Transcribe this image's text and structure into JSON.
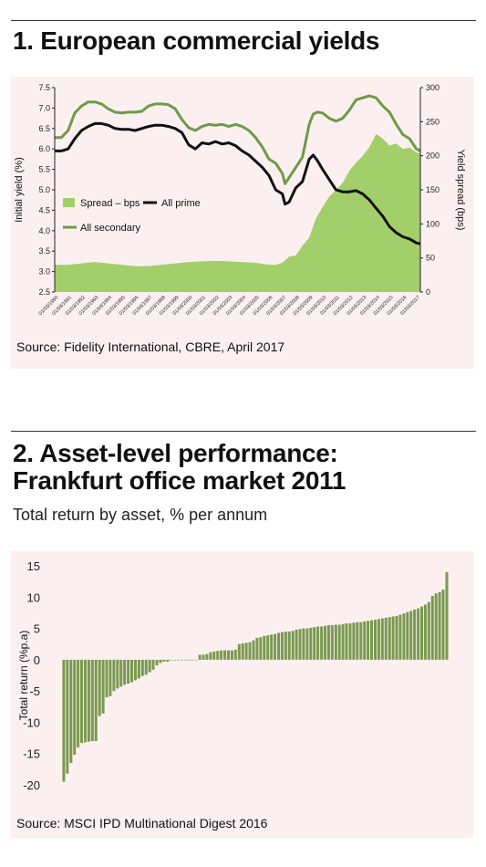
{
  "section1": {
    "title": "1. European commercial yields",
    "source": "Source: Fidelity International, CBRE, April 2017"
  },
  "section2": {
    "title_line1": "2. Asset-level performance:",
    "title_line2": "Frankfurt office market 2011",
    "subtitle": "Total return by asset, % per annum",
    "source": "Source: MSCI IPD Multinational Digest 2016"
  },
  "chart_data": [
    {
      "type": "line",
      "ylabel": "Initial yield (%)",
      "y2label": "Yield spread (bps)",
      "ylim": [
        2.5,
        7.5
      ],
      "yticks": [
        "2.5",
        "3.0",
        "3.5",
        "4.0",
        "4.5",
        "5.0",
        "5.5",
        "6.0",
        "6.5",
        "7.0",
        "7.5"
      ],
      "y2lim": [
        0,
        300
      ],
      "y2ticks": [
        "0",
        "50",
        "100",
        "150",
        "200",
        "250",
        "300"
      ],
      "xticks": [
        "01/03/1990",
        "01/03/1991",
        "01/03/1992",
        "01/03/1993",
        "01/03/1994",
        "01/03/1995",
        "01/03/1996",
        "01/03/1997",
        "01/03/1998",
        "01/03/1999",
        "01/03/2000",
        "01/03/2001",
        "01/03/2002",
        "01/03/2003",
        "01/03/2004",
        "01/03/2005",
        "01/03/2006",
        "01/03/2007",
        "01/03/2008",
        "01/03/2009",
        "01/03/2010",
        "01/03/2011",
        "01/03/2012",
        "01/03/2013",
        "01/03/2014",
        "01/03/2015",
        "01/03/2016",
        "01/03/2017"
      ],
      "legend": [
        "Spread – bps",
        "All prime",
        "All secondary"
      ],
      "colors": {
        "spread": "#a3cf6a",
        "prime": "#111111",
        "secondary": "#6e9a4a"
      },
      "series": [
        {
          "name": "All secondary",
          "axis": "left",
          "x": [
            1990.0,
            1990.5,
            1991.0,
            1991.5,
            1992.0,
            1992.5,
            1993.0,
            1993.5,
            1994.0,
            1994.5,
            1995.0,
            1995.5,
            1996.0,
            1996.5,
            1997.0,
            1997.5,
            1998.0,
            1998.5,
            1999.0,
            1999.5,
            2000.0,
            2000.5,
            2001.0,
            2001.5,
            2002.0,
            2002.5,
            2003.0,
            2003.5,
            2004.0,
            2004.5,
            2005.0,
            2005.5,
            2006.0,
            2006.5,
            2007.0,
            2007.2,
            2007.5,
            2008.0,
            2008.5,
            2009.0,
            2009.3,
            2009.6,
            2010.0,
            2010.5,
            2011.0,
            2011.5,
            2012.0,
            2012.5,
            2013.0,
            2013.5,
            2014.0,
            2014.5,
            2015.0,
            2015.5,
            2016.0,
            2016.5,
            2017.0,
            2017.3
          ],
          "values": [
            6.28,
            6.28,
            6.45,
            6.88,
            7.05,
            7.15,
            7.15,
            7.1,
            6.98,
            6.9,
            6.88,
            6.9,
            6.9,
            6.92,
            7.05,
            7.1,
            7.1,
            7.08,
            6.98,
            6.72,
            6.52,
            6.45,
            6.55,
            6.6,
            6.58,
            6.6,
            6.55,
            6.6,
            6.55,
            6.45,
            6.28,
            6.05,
            5.75,
            5.65,
            5.4,
            5.15,
            5.3,
            5.55,
            5.8,
            6.6,
            6.85,
            6.9,
            6.88,
            6.75,
            6.68,
            6.75,
            6.95,
            7.2,
            7.25,
            7.3,
            7.25,
            7.05,
            6.9,
            6.6,
            6.35,
            6.25,
            6.0,
            5.95
          ]
        },
        {
          "name": "All prime",
          "axis": "left",
          "x": [
            1990.0,
            1990.5,
            1991.0,
            1991.5,
            1992.0,
            1992.5,
            1993.0,
            1993.5,
            1994.0,
            1994.5,
            1995.0,
            1995.5,
            1996.0,
            1996.5,
            1997.0,
            1997.5,
            1998.0,
            1998.5,
            1999.0,
            1999.5,
            2000.0,
            2000.5,
            2001.0,
            2001.5,
            2002.0,
            2002.5,
            2003.0,
            2003.5,
            2004.0,
            2004.5,
            2005.0,
            2005.5,
            2006.0,
            2006.5,
            2007.0,
            2007.2,
            2007.5,
            2008.0,
            2008.5,
            2009.0,
            2009.3,
            2009.6,
            2010.0,
            2010.5,
            2011.0,
            2011.5,
            2012.0,
            2012.5,
            2013.0,
            2013.5,
            2014.0,
            2014.5,
            2015.0,
            2015.5,
            2016.0,
            2016.5,
            2017.0,
            2017.3
          ],
          "values": [
            5.95,
            5.95,
            6.0,
            6.25,
            6.45,
            6.55,
            6.62,
            6.62,
            6.58,
            6.5,
            6.48,
            6.48,
            6.45,
            6.5,
            6.55,
            6.58,
            6.58,
            6.55,
            6.5,
            6.4,
            6.1,
            6.0,
            6.15,
            6.12,
            6.18,
            6.12,
            6.15,
            6.08,
            5.95,
            5.85,
            5.7,
            5.55,
            5.35,
            5.0,
            4.9,
            4.65,
            4.7,
            5.05,
            5.2,
            5.75,
            5.85,
            5.72,
            5.5,
            5.25,
            5.0,
            4.95,
            4.95,
            4.98,
            4.9,
            4.75,
            4.55,
            4.35,
            4.1,
            3.95,
            3.85,
            3.8,
            3.7,
            3.68
          ]
        },
        {
          "name": "Spread – bps",
          "axis": "right",
          "x": [
            1990.0,
            1991.0,
            1992.0,
            1993.0,
            1994.0,
            1995.0,
            1996.0,
            1997.0,
            1998.0,
            1999.0,
            2000.0,
            2001.0,
            2002.0,
            2003.0,
            2004.0,
            2005.0,
            2006.0,
            2006.5,
            2007.0,
            2007.5,
            2008.0,
            2008.5,
            2009.0,
            2009.5,
            2010.0,
            2010.5,
            2011.0,
            2011.5,
            2012.0,
            2012.5,
            2013.0,
            2013.5,
            2014.0,
            2014.5,
            2015.0,
            2015.5,
            2016.0,
            2016.5,
            2017.0,
            2017.3
          ],
          "values": [
            40,
            40,
            42,
            44,
            42,
            40,
            38,
            38,
            40,
            42,
            44,
            45,
            46,
            45,
            44,
            43,
            40,
            40,
            43,
            52,
            54,
            68,
            80,
            108,
            125,
            140,
            150,
            160,
            178,
            190,
            200,
            213,
            232,
            225,
            215,
            218,
            210,
            212,
            205,
            203
          ]
        }
      ]
    },
    {
      "type": "bar",
      "ylabel": "Total return (%p.a)",
      "ylim": [
        -20,
        15
      ],
      "yticks": [
        "15",
        "10",
        "5",
        "0",
        "-5",
        "-10",
        "-15",
        "-20"
      ],
      "color": "#7a9a50",
      "values": [
        -19.5,
        -18.2,
        -16.5,
        -15.2,
        -14.0,
        -13.3,
        -13.2,
        -13.1,
        -13.0,
        -13.0,
        -9.0,
        -8.6,
        -6.0,
        -5.8,
        -5.0,
        -4.6,
        -4.3,
        -4.0,
        -3.8,
        -3.6,
        -3.3,
        -3.0,
        -2.6,
        -2.4,
        -2.0,
        -1.6,
        -0.9,
        -0.5,
        -0.3,
        -0.3,
        0.0,
        0.0,
        0.0,
        0.0,
        0.0,
        0.0,
        0.0,
        0.0,
        0.8,
        0.8,
        0.9,
        1.2,
        1.3,
        1.4,
        1.5,
        1.5,
        1.5,
        1.5,
        1.6,
        2.5,
        2.6,
        2.7,
        2.8,
        3.1,
        3.5,
        3.6,
        3.8,
        3.9,
        4.0,
        4.1,
        4.3,
        4.4,
        4.5,
        4.5,
        4.6,
        4.8,
        4.9,
        5.0,
        5.0,
        5.1,
        5.2,
        5.3,
        5.3,
        5.4,
        5.5,
        5.5,
        5.6,
        5.6,
        5.7,
        5.8,
        5.8,
        5.9,
        6.0,
        6.0,
        6.1,
        6.2,
        6.3,
        6.4,
        6.5,
        6.6,
        6.7,
        6.8,
        6.9,
        7.0,
        7.2,
        7.4,
        7.6,
        7.8,
        8.0,
        8.2,
        8.5,
        8.8,
        9.2,
        10.2,
        10.6,
        10.8,
        11.2,
        14.0
      ]
    }
  ]
}
